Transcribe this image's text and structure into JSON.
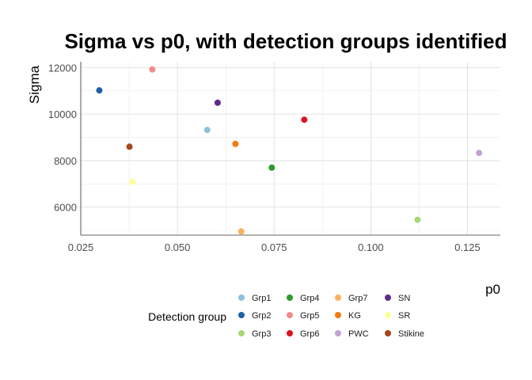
{
  "chart_data": {
    "type": "scatter",
    "title": "Sigma vs p0, with detection groups identified",
    "xlabel": "p0",
    "ylabel": "Sigma",
    "xlim": [
      0.025,
      0.1335
    ],
    "ylim": [
      4800,
      12250
    ],
    "xticks": [
      0.025,
      0.05,
      0.075,
      0.1,
      0.125
    ],
    "xtick_labels": [
      "0.025",
      "0.050",
      "0.075",
      "0.100",
      "0.125"
    ],
    "yticks": [
      6000,
      8000,
      10000,
      12000
    ],
    "ytick_labels": [
      "6000",
      "8000",
      "10000",
      "12000"
    ],
    "grid": true,
    "legend": {
      "title": "Detection group",
      "position": "bottom",
      "ncol": 4
    },
    "series": [
      {
        "name": "Grp1",
        "color": "#8fbfdc",
        "x": 0.0577,
        "y": 9320
      },
      {
        "name": "Grp2",
        "color": "#1f61a4",
        "x": 0.0298,
        "y": 11020
      },
      {
        "name": "Grp3",
        "color": "#a6d876",
        "x": 0.1121,
        "y": 5460
      },
      {
        "name": "Grp4",
        "color": "#2b9a2b",
        "x": 0.0744,
        "y": 7700
      },
      {
        "name": "Grp5",
        "color": "#f08c8c",
        "x": 0.0435,
        "y": 11920
      },
      {
        "name": "Grp6",
        "color": "#e0111f",
        "x": 0.0828,
        "y": 9760
      },
      {
        "name": "Grp7",
        "color": "#fbb25c",
        "x": 0.0665,
        "y": 4960
      },
      {
        "name": "KG",
        "color": "#f57a10",
        "x": 0.065,
        "y": 8720
      },
      {
        "name": "PWC",
        "color": "#c2a3d3",
        "x": 0.128,
        "y": 8330
      },
      {
        "name": "SN",
        "color": "#5e2b8d",
        "x": 0.0604,
        "y": 10490
      },
      {
        "name": "SR",
        "color": "#feff99",
        "x": 0.0384,
        "y": 7090
      },
      {
        "name": "Stikine",
        "color": "#a4471b",
        "x": 0.0376,
        "y": 8600
      }
    ]
  }
}
